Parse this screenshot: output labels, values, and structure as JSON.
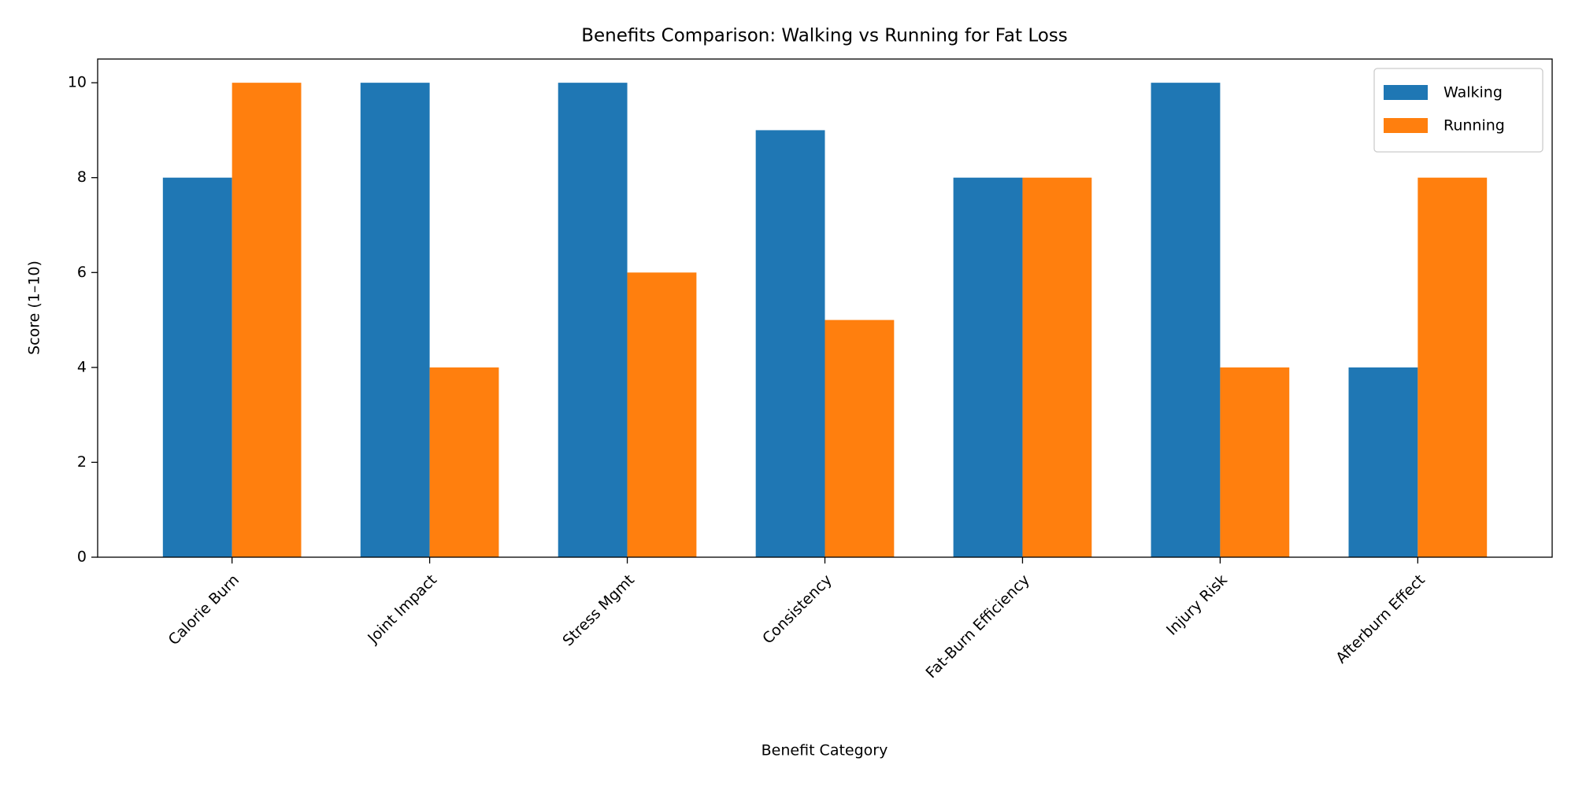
{
  "chart_data": {
    "type": "bar",
    "title": "Benefits Comparison: Walking vs Running for Fat Loss",
    "x_label": "Benefit Category",
    "y_label": "Score (1–10)",
    "categories": [
      "Calorie Burn",
      "Joint Impact",
      "Stress Mgmt",
      "Consistency",
      "Fat-Burn Efficiency",
      "Injury Risk",
      "Afterburn Effect"
    ],
    "series": [
      {
        "name": "Walking",
        "color": "#1f77b4",
        "values": [
          8,
          10,
          10,
          9,
          8,
          10,
          4
        ]
      },
      {
        "name": "Running",
        "color": "#ff7f0e",
        "values": [
          10,
          4,
          6,
          5,
          8,
          4,
          8
        ]
      }
    ],
    "ylim": [
      0,
      10.5
    ],
    "yticks": [
      0,
      2,
      4,
      6,
      8,
      10
    ],
    "grid": false,
    "legend": "upper right"
  }
}
